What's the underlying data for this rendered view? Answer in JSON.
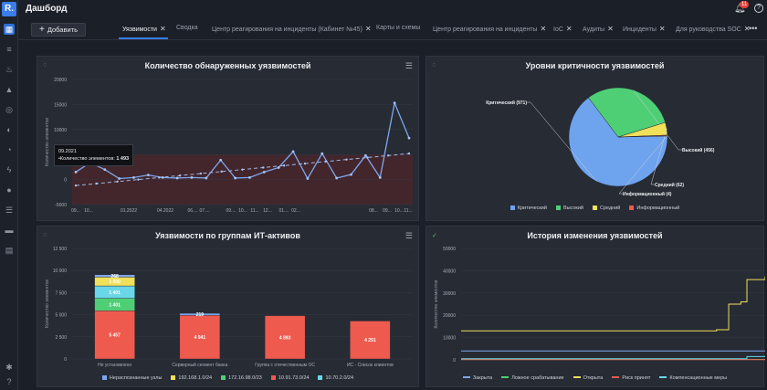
{
  "app": {
    "logo_text": "R.",
    "page_title": "Дашборд",
    "notification_count": "11"
  },
  "colors": {
    "accent": "#3b7de9",
    "critical": "#6ea3ee",
    "high": "#4fcf75",
    "medium": "#f0e05a",
    "info": "#ef5a4e"
  },
  "toolbar": {
    "add_label": "Добавить",
    "more_label": "•••"
  },
  "tabs": [
    {
      "label": "Уязвимости",
      "closable": true,
      "active": true
    },
    {
      "label": "Сводка",
      "closable": false
    },
    {
      "label": "Центр реагирования на инциденты (Кабинет №45)",
      "closable": true
    },
    {
      "label": "Карты и схемы",
      "closable": false
    },
    {
      "label": "Центр реагирования на инциденты",
      "closable": true
    },
    {
      "label": "IoC",
      "closable": true
    },
    {
      "label": "Аудиты",
      "closable": true
    },
    {
      "label": "Инциденты",
      "closable": true
    },
    {
      "label": "Для руководства SOC",
      "closable": true
    }
  ],
  "sidebar_icons": [
    "grid-icon",
    "database-icon",
    "fire-icon",
    "warning-icon",
    "target-icon",
    "shield-icon",
    "pie-icon",
    "bolt-icon",
    "alert-icon",
    "list-icon",
    "folder-icon",
    "report-icon",
    "settings-icon",
    "help-icon"
  ],
  "panels": {
    "vuln_count": {
      "title": "Количество обнаруженных уязвимостей"
    },
    "severity": {
      "title": "Уровни критичности уязвимостей"
    },
    "groups": {
      "title": "Уязвимости по группам ИТ-активов"
    },
    "history": {
      "title": "История изменения уязвимостей"
    }
  },
  "tooltip": {
    "date": "09.2021",
    "label": "•Количество элементов:",
    "value": "1 493"
  },
  "chart_data": [
    {
      "type": "line",
      "title": "Количество обнаруженных уязвимостей",
      "ylabel": "Количество элементов",
      "ylim": [
        -5000,
        20000
      ],
      "y_ticks": [
        "20000",
        "15000",
        "10000",
        "5000",
        "0",
        "-5000"
      ],
      "x_ticks": [
        "09...",
        "10...",
        "01.2022",
        "04.2022",
        "06....",
        "07....",
        "09....",
        "10...",
        "11...",
        "12...",
        "01....",
        "02...",
        "08...",
        "09...",
        "10...",
        "11..."
      ],
      "series": [
        {
          "kind": "actual",
          "values": [
            1493,
            3400,
            2000,
            200,
            400,
            900,
            400,
            300,
            400,
            300,
            3900,
            300,
            400,
            1500,
            2400,
            5600,
            200,
            5200,
            300,
            1000,
            4800,
            400,
            15300,
            8300
          ]
        },
        {
          "kind": "trend",
          "values": [
            -1200,
            -800,
            -400,
            0,
            400,
            800,
            1200,
            1600,
            2000,
            2400,
            2800,
            3200,
            3600,
            4000,
            4400,
            4800,
            5200
          ]
        }
      ],
      "grid": true
    },
    {
      "type": "pie",
      "title": "Уровни критичности уязвимостей",
      "slices": [
        {
          "name": "Критический",
          "label": "Критический (971)",
          "value": 971,
          "color": "#6ea3ee"
        },
        {
          "name": "Высокий",
          "label": "Высокий (456)",
          "value": 456,
          "color": "#4fcf75"
        },
        {
          "name": "Средний",
          "label": "Средний (62)",
          "value": 62,
          "color": "#f0e05a"
        },
        {
          "name": "Информационный",
          "label": "Информационный (4)",
          "value": 4,
          "color": "#ef5a4e"
        }
      ],
      "legend_position": "bottom"
    },
    {
      "type": "bar",
      "title": "Уязвимости по группам ИТ-активов",
      "ylabel": "Количество элементов",
      "ylim": [
        0,
        12500
      ],
      "y_ticks": [
        "12 500",
        "10 000",
        "7 500",
        "5 000",
        "2 500",
        "0"
      ],
      "categories": [
        "Не установлено",
        "Серверный сегмент банка",
        "Группа с отечественным ОС",
        "ИС - Список клиентов"
      ],
      "series": [
        {
          "name": "10.91.73.0/24",
          "color": "#ef5a4e",
          "values": [
            5457,
            4941,
            4893,
            4291
          ],
          "labels": [
            "5 457",
            "4 941",
            "4 893",
            "4 291"
          ]
        },
        {
          "name": "172.16.98.0/23",
          "color": "#4fcf75",
          "values": [
            1401,
            0,
            0,
            0
          ],
          "labels": [
            "1 401",
            "",
            "",
            ""
          ]
        },
        {
          "name": "10.70.2.0/24",
          "color": "#6ad7e8",
          "values": [
            1401,
            0,
            0,
            0
          ],
          "labels": [
            "1 401",
            "",
            "",
            ""
          ]
        },
        {
          "name": "192.168.1.0/24",
          "color": "#f0e05a",
          "values": [
            1000,
            0,
            0,
            0
          ],
          "labels": [
            "1 000",
            "",
            "",
            ""
          ]
        },
        {
          "name": "Нераспознанные узлы",
          "color": "#7ea6ee",
          "values": [
            268,
            219,
            0,
            0
          ],
          "labels": [
            "268",
            "219",
            "",
            ""
          ]
        }
      ],
      "legend_order": [
        "Нераспознанные узлы",
        "192.168.1.0/24",
        "172.16.98.0/23",
        "10.91.73.0/24",
        "10.70.2.0/24"
      ]
    },
    {
      "type": "line",
      "title": "История изменения уязвимостей",
      "ylabel": "Количество элементов",
      "ylim": [
        0,
        50000
      ],
      "y_ticks": [
        "50000",
        "40000",
        "30000",
        "20000",
        "10000",
        "0"
      ],
      "series": [
        {
          "name": "Закрыта",
          "color": "#7ea6ee",
          "values": [
            4000,
            4000,
            4000,
            4000,
            4000,
            4000,
            4000,
            4000,
            4000,
            4000
          ]
        },
        {
          "name": "Ложное срабатывание",
          "color": "#4fcf75",
          "values": [
            200,
            200,
            200,
            200,
            200,
            200,
            200,
            200,
            200,
            200
          ]
        },
        {
          "name": "Открыта",
          "color": "#f0e05a",
          "values": [
            13000,
            13000,
            13000,
            13000,
            13500,
            13500,
            25000,
            26000,
            36000,
            37500
          ]
        },
        {
          "name": "Риск принят",
          "color": "#ef5a4e",
          "values": [
            100,
            100,
            100,
            100,
            100,
            100,
            100,
            100,
            100,
            100
          ]
        },
        {
          "name": "Компенсационные меры",
          "color": "#6ad7e8",
          "values": [
            500,
            500,
            500,
            500,
            500,
            500,
            500,
            500,
            1500,
            1800
          ]
        }
      ]
    }
  ]
}
